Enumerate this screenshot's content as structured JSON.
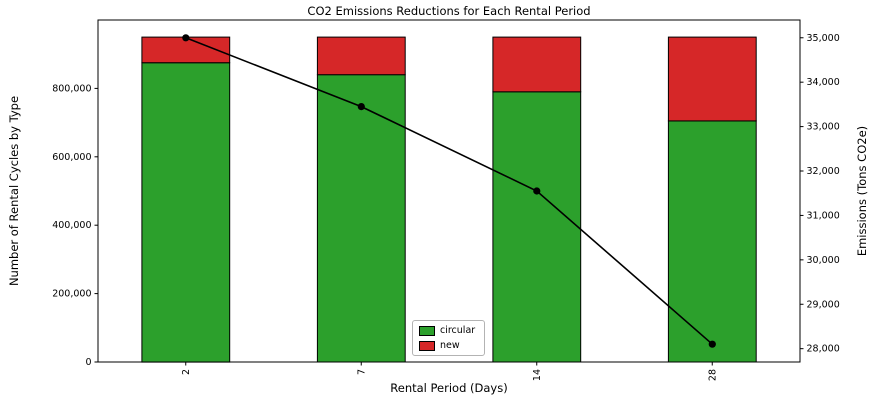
{
  "chart_data": {
    "type": "bar",
    "subtype": "stacked-bars-with-line",
    "title": "CO2 Emissions Reductions for Each Rental Period",
    "xlabel": "Rental Period (Days)",
    "ylabel_left": "Number of Rental Cycles by Type",
    "ylabel_right": "Emissions (Tons CO2e)",
    "categories": [
      "2",
      "7",
      "14",
      "28"
    ],
    "series": [
      {
        "name": "circular",
        "type": "bar",
        "color": "#2ca02c",
        "values": [
          875000,
          840000,
          790000,
          705000
        ]
      },
      {
        "name": "new",
        "type": "bar",
        "color": "#d62728",
        "values": [
          75000,
          110000,
          160000,
          245000
        ]
      },
      {
        "name": "emissions",
        "type": "line",
        "axis": "right",
        "color": "#000000",
        "values": [
          35000,
          33450,
          31550,
          28100
        ]
      }
    ],
    "bar_totals": [
      950000,
      950000,
      950000,
      950000
    ],
    "ylim_left": [
      0,
      1000000
    ],
    "ylim_right": [
      27700,
      35400
    ],
    "yticks_left": [
      0,
      200000,
      400000,
      600000,
      800000
    ],
    "yticks_right": [
      28000,
      29000,
      30000,
      31000,
      32000,
      33000,
      34000,
      35000
    ],
    "legend_position": "lower center",
    "grid": false
  },
  "legend": {
    "items": [
      {
        "label": "circular",
        "color": "#2ca02c"
      },
      {
        "label": "new",
        "color": "#d62728"
      }
    ]
  }
}
